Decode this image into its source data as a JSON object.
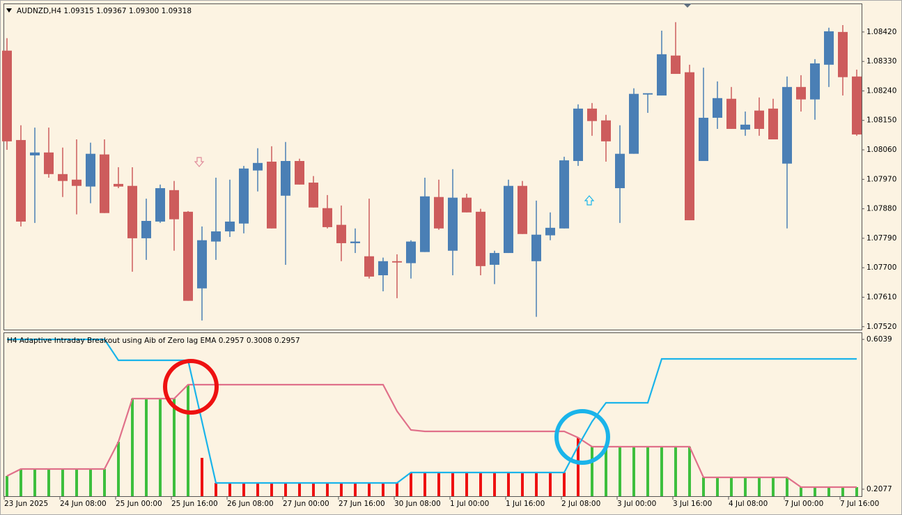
{
  "chart_data": [
    {
      "type": "candlestick",
      "title": "AUDNZD,H4  1.09315 1.09367 1.09300 1.09318",
      "categories": [
        "23 Jun 2025",
        null,
        null,
        null,
        "24 Jun 08:00",
        null,
        null,
        null,
        "25 Jun 00:00",
        null,
        null,
        null,
        "25 Jun 16:00",
        null,
        null,
        null,
        "26 Jun 08:00",
        null,
        null,
        null,
        "27 Jun 00:00",
        null,
        null,
        null,
        "27 Jun 16:00",
        null,
        null,
        null,
        "30 Jun 08:00",
        null,
        null,
        null,
        "1 Jul 00:00",
        null,
        null,
        null,
        "1 Jul 16:00",
        null,
        null,
        null,
        "2 Jul 08:00",
        null,
        null,
        null,
        "3 Jul 00:00",
        null,
        null,
        null,
        "3 Jul 16:00",
        null,
        null,
        null,
        "4 Jul 08:00",
        null,
        null,
        null,
        "7 Jul 00:00",
        null,
        null,
        null,
        "7 Jul 16:00",
        null
      ],
      "open": [
        1.08363,
        1.0809,
        1.08043,
        1.08052,
        1.07986,
        1.07969,
        1.07948,
        1.08046,
        1.07956,
        1.0795,
        1.0779,
        1.07841,
        1.07937,
        1.07871,
        1.07637,
        1.0778,
        1.07811,
        1.07835,
        1.07997,
        1.08024,
        1.0792,
        1.08026,
        1.0796,
        1.07882,
        1.07831,
        1.07775,
        1.07735,
        1.07677,
        1.0772,
        1.07714,
        1.07748,
        1.07916,
        1.07752,
        1.07914,
        1.07871,
        1.07709,
        1.07745,
        1.0795,
        1.0772,
        1.07799,
        1.0782,
        1.08026,
        1.08186,
        1.0815,
        1.07943,
        1.08048,
        1.08229,
        1.08226,
        1.08348,
        1.08297,
        1.08026,
        1.08158,
        1.08216,
        1.08122,
        1.0818,
        1.08186,
        1.08018,
        1.08252,
        1.08214,
        1.0832,
        1.0842,
        1.08284
      ],
      "high": [
        1.08401,
        1.08135,
        1.08128,
        1.08128,
        1.08067,
        1.08092,
        1.08082,
        1.08092,
        1.08007,
        1.08007,
        1.07911,
        1.07954,
        1.07965,
        1.07873,
        1.07826,
        1.07975,
        1.07969,
        1.08011,
        1.08065,
        1.08071,
        1.08084,
        1.08033,
        1.0798,
        1.07922,
        1.0789,
        1.0782,
        1.07911,
        1.07731,
        1.07741,
        1.07784,
        1.07975,
        1.07969,
        1.08001,
        1.07926,
        1.0788,
        1.07752,
        1.07969,
        1.07965,
        1.07905,
        1.07869,
        1.08039,
        1.08199,
        1.08203,
        1.08167,
        1.08135,
        1.08248,
        1.08231,
        1.08424,
        1.0845,
        1.0832,
        1.08311,
        1.08269,
        1.08252,
        1.08177,
        1.0822,
        1.08216,
        1.08284,
        1.08288,
        1.08337,
        1.08433,
        1.08441,
        1.08305
      ],
      "low": [
        1.0806,
        1.07826,
        1.07837,
        1.07975,
        1.07916,
        1.07863,
        1.07897,
        1.07867,
        1.07943,
        1.07688,
        1.07724,
        1.07837,
        1.07752,
        1.07599,
        1.07539,
        1.07724,
        1.07794,
        1.07805,
        1.07933,
        1.0782,
        1.07709,
        1.07954,
        1.07884,
        1.0782,
        1.0772,
        1.07745,
        1.07667,
        1.07628,
        1.07607,
        1.07667,
        1.07748,
        1.07816,
        1.07677,
        1.07869,
        1.07677,
        1.0765,
        1.07745,
        1.07803,
        1.0755,
        1.07784,
        1.0782,
        1.08011,
        1.08103,
        1.08024,
        1.07837,
        1.08048,
        1.08173,
        1.08226,
        1.08292,
        1.07845,
        1.08026,
        1.08124,
        1.08124,
        1.08103,
        1.08103,
        1.08092,
        1.0782,
        1.08177,
        1.08152,
        1.08252,
        1.08226,
        1.08103
      ],
      "close": [
        1.08086,
        1.07841,
        1.08052,
        1.07986,
        1.07965,
        1.0795,
        1.08048,
        1.07867,
        1.07948,
        1.0779,
        1.07843,
        1.07943,
        1.07848,
        1.07599,
        1.07784,
        1.07811,
        1.07841,
        1.08003,
        1.0802,
        1.0782,
        1.08026,
        1.07954,
        1.07884,
        1.07824,
        1.07775,
        1.0778,
        1.07673,
        1.0772,
        1.07716,
        1.0778,
        1.07918,
        1.0782,
        1.07914,
        1.07869,
        1.07705,
        1.07745,
        1.0795,
        1.07803,
        1.07801,
        1.07822,
        1.08028,
        1.08186,
        1.08148,
        1.08086,
        1.08048,
        1.08231,
        1.08233,
        1.08352,
        1.08292,
        1.07845,
        1.08158,
        1.08218,
        1.08124,
        1.08137,
        1.08124,
        1.08092,
        1.08252,
        1.08214,
        1.08324,
        1.08422,
        1.08282,
        1.08107
      ],
      "up_color": "#4a7fb5",
      "down_color": "#cd5c5c",
      "ylim": [
        1.07511,
        1.08507
      ],
      "yticks": [
        {
          "value": 1.0842,
          "label": "1.08420"
        },
        {
          "value": 1.0833,
          "label": "1.08330"
        },
        {
          "value": 1.0824,
          "label": "1.08240"
        },
        {
          "value": 1.0815,
          "label": "1.08150"
        },
        {
          "value": 1.0806,
          "label": "1.08060"
        },
        {
          "value": 1.0797,
          "label": "1.07970"
        },
        {
          "value": 1.0788,
          "label": "1.07880"
        },
        {
          "value": 1.0779,
          "label": "1.07790"
        },
        {
          "value": 1.077,
          "label": "1.07700"
        },
        {
          "value": 1.0761,
          "label": "1.07610"
        },
        {
          "value": 1.0752,
          "label": "1.07520"
        }
      ]
    },
    {
      "type": "histogram_lines",
      "title": "H4   Adaptive Intraday Breakout using Aib of Zero lag EMA 0.2957 0.3008 0.2957",
      "bars": {
        "values": [
          0.2427,
          0.2611,
          0.2611,
          0.2611,
          0.2611,
          0.2611,
          0.2611,
          0.2611,
          0.333,
          0.4472,
          0.4472,
          0.4472,
          0.4472,
          0.4841,
          0.2906,
          0.2242,
          0.2242,
          0.2242,
          0.2242,
          0.2242,
          0.2242,
          0.2242,
          0.2242,
          0.2242,
          0.2242,
          0.2242,
          0.2242,
          0.2242,
          0.2242,
          0.2519,
          0.2519,
          0.2519,
          0.2519,
          0.2519,
          0.2519,
          0.2519,
          0.2519,
          0.2519,
          0.2519,
          0.2519,
          0.2519,
          0.344,
          0.3201,
          0.3201,
          0.3201,
          0.3201,
          0.3201,
          0.3201,
          0.3201,
          0.3201,
          0.239,
          0.239,
          0.239,
          0.239,
          0.239,
          0.239,
          0.239,
          0.2132,
          0.2132,
          0.2132,
          0.2132,
          0.2132
        ],
        "colors": [
          "#3dbf3d",
          "#3dbf3d",
          "#3dbf3d",
          "#3dbf3d",
          "#3dbf3d",
          "#3dbf3d",
          "#3dbf3d",
          "#3dbf3d",
          "#3dbf3d",
          "#3dbf3d",
          "#3dbf3d",
          "#3dbf3d",
          "#3dbf3d",
          "#3dbf3d",
          "#ee1111",
          "#ee1111",
          "#ee1111",
          "#ee1111",
          "#ee1111",
          "#ee1111",
          "#ee1111",
          "#ee1111",
          "#ee1111",
          "#ee1111",
          "#ee1111",
          "#ee1111",
          "#ee1111",
          "#ee1111",
          "#ee1111",
          "#ee1111",
          "#ee1111",
          "#ee1111",
          "#ee1111",
          "#ee1111",
          "#ee1111",
          "#ee1111",
          "#ee1111",
          "#ee1111",
          "#ee1111",
          "#ee1111",
          "#ee1111",
          "#ee1111",
          "#3dbf3d",
          "#3dbf3d",
          "#3dbf3d",
          "#3dbf3d",
          "#3dbf3d",
          "#3dbf3d",
          "#3dbf3d",
          "#3dbf3d",
          "#3dbf3d",
          "#3dbf3d",
          "#3dbf3d",
          "#3dbf3d",
          "#3dbf3d",
          "#3dbf3d",
          "#3dbf3d",
          "#3dbf3d",
          "#3dbf3d",
          "#3dbf3d",
          "#3dbf3d",
          "#3dbf3d"
        ]
      },
      "series": [
        {
          "color": "#e0708a",
          "values": [
            0.2427,
            0.2611,
            0.2611,
            0.2611,
            0.2611,
            0.2611,
            0.2611,
            0.2611,
            0.333,
            0.4472,
            0.4472,
            0.4472,
            0.4472,
            0.4841,
            0.4841,
            0.4841,
            0.4841,
            0.4841,
            0.4841,
            0.4841,
            0.4841,
            0.4841,
            0.4841,
            0.4841,
            0.4841,
            0.4841,
            0.4841,
            0.4841,
            0.4141,
            0.3643,
            0.3606,
            0.3606,
            0.3606,
            0.3606,
            0.3606,
            0.3606,
            0.3606,
            0.3606,
            0.3606,
            0.3606,
            0.3606,
            0.344,
            0.3201,
            0.3201,
            0.3201,
            0.3201,
            0.3201,
            0.3201,
            0.3201,
            0.3201,
            0.239,
            0.239,
            0.239,
            0.239,
            0.239,
            0.239,
            0.239,
            0.2132,
            0.2132,
            0.2132,
            0.2132,
            0.2132
          ]
        },
        {
          "color": "#1ab4ea",
          "values": [
            0.6039,
            0.6039,
            0.6039,
            0.6039,
            0.6039,
            0.6039,
            0.6039,
            0.6039,
            0.5486,
            0.5486,
            0.5486,
            0.5486,
            0.5486,
            0.5486,
            0.3864,
            0.2242,
            0.2242,
            0.2242,
            0.2242,
            0.2242,
            0.2242,
            0.2242,
            0.2242,
            0.2242,
            0.2242,
            0.2242,
            0.2242,
            0.2242,
            0.2242,
            0.2519,
            0.2519,
            0.2519,
            0.2519,
            0.2519,
            0.2519,
            0.2519,
            0.2519,
            0.2519,
            0.2519,
            0.2519,
            0.2519,
            0.3219,
            0.3864,
            0.4362,
            0.4362,
            0.4362,
            0.4362,
            0.5523,
            0.5523,
            0.5523,
            0.5523,
            0.5523,
            0.5523,
            0.5523,
            0.5523,
            0.5523,
            0.5523,
            0.5523,
            0.5523,
            0.5523,
            0.5523,
            0.5523
          ]
        }
      ],
      "ylim": [
        0.1892,
        0.6205
      ],
      "yticks": [
        0.6039,
        0.2077
      ]
    }
  ]
}
